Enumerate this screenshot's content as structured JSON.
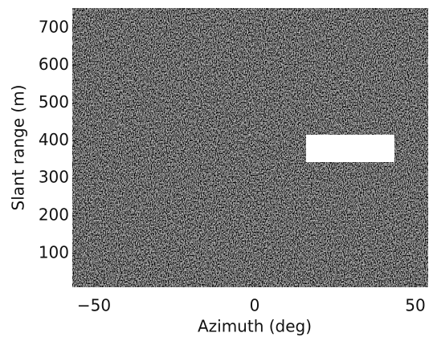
{
  "chart_data": {
    "type": "image",
    "xlabel": "Azimuth (deg)",
    "ylabel": "Slant range (m)",
    "xlim": [
      -56.75,
      54
    ],
    "ylim": [
      10,
      753
    ],
    "xticks": [
      {
        "value": -50,
        "label": "−50"
      },
      0,
      50
    ],
    "yticks": [
      100,
      200,
      300,
      400,
      500,
      600,
      700
    ],
    "regions": [
      {
        "x": [
          16,
          43.5
        ],
        "y": [
          343,
          416
        ],
        "color": "#ffffff"
      }
    ]
  }
}
